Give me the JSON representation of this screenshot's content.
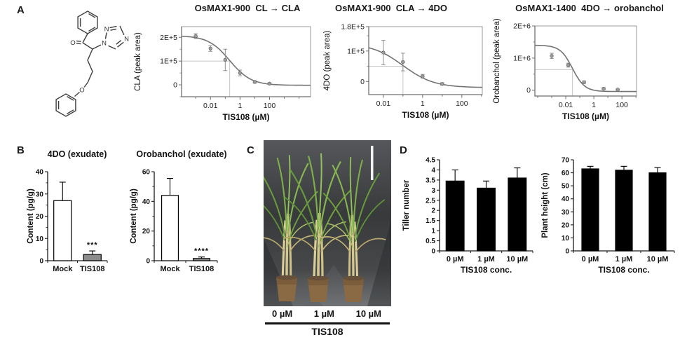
{
  "panels": {
    "a": {
      "label": "A"
    },
    "b": {
      "label": "B"
    },
    "c": {
      "label": "C",
      "concentrations": [
        "0 µM",
        "1 µM",
        "10 µM"
      ],
      "treatment": "TIS108"
    },
    "d": {
      "label": "D"
    }
  },
  "molecule": {
    "atoms": {
      "o_carbonyl": "O",
      "n1": "N",
      "n2": "N",
      "n4": "N",
      "o_ether": "O"
    }
  },
  "colors": {
    "curve_gray": "#737373",
    "marker_gray": "#c6c6c6",
    "mock_bar": "#ffffff",
    "tis108_bar": "#8c8c8c",
    "black_bar": "#000000",
    "photo_background": "#3a3c3e"
  },
  "chart_data": [
    {
      "id": "dose-cl-cla",
      "type": "line",
      "panel": "A",
      "title": "OsMAX1-900  CL → CLA",
      "xlabel": "TIS108 (µM)",
      "ylabel": "CLA (peak area)",
      "xscale": "log",
      "xlim": [
        0.00011,
        60000
      ],
      "ylim": [
        -50000,
        245000
      ],
      "x_ticks": [
        {
          "v": 0.01,
          "label": "0.01"
        },
        {
          "v": 1,
          "label": "1"
        },
        {
          "v": 100,
          "label": "100"
        }
      ],
      "y_ticks": [
        {
          "v": 0,
          "label": "0"
        },
        {
          "v": 100000,
          "label": "1E+5"
        },
        {
          "v": 200000,
          "label": "2E+5"
        }
      ],
      "y_minor": 50000,
      "points": {
        "x": [
          0.001,
          0.01,
          0.1,
          1,
          10,
          100
        ],
        "y": [
          205000,
          153000,
          105000,
          50000,
          12000,
          5000
        ],
        "err": [
          10000,
          12000,
          45000,
          12000,
          5000,
          4000
        ]
      },
      "curve": {
        "top": 207000,
        "bottom": -2000,
        "ic50": 0.2,
        "hill": 0.6
      },
      "ic50_marker": {
        "x": 0.2,
        "y": 100000
      }
    },
    {
      "id": "dose-cla-4do",
      "type": "line",
      "panel": "A",
      "title": "OsMAX1-900  CLA → 4DO",
      "xlabel": "TIS108 (µM)",
      "ylabel": "4DO (peak area)",
      "xscale": "log",
      "xlim": [
        0.0018,
        1100
      ],
      "ylim": [
        -43000,
        180000
      ],
      "x_ticks": [
        {
          "v": 0.01,
          "label": "0.01"
        },
        {
          "v": 1,
          "label": "1"
        },
        {
          "v": 100,
          "label": "100"
        }
      ],
      "y_ticks": [
        {
          "v": 0,
          "label": "0"
        },
        {
          "v": 100000,
          "label": "1E+5"
        },
        {
          "v": 180000,
          "label": "1.8E+5"
        }
      ],
      "y_minor": 50000,
      "points": {
        "x": [
          0.01,
          0.1,
          1,
          10
        ],
        "y": [
          95000,
          64000,
          17000,
          -8000
        ],
        "err": [
          40000,
          29000,
          6000,
          4000
        ]
      },
      "curve": {
        "top": 125000,
        "bottom": -20000,
        "ic50": 0.1,
        "hill": 0.55
      },
      "ic50_marker": {
        "x": 0.1,
        "y": 50000
      }
    },
    {
      "id": "dose-4do-oro",
      "type": "line",
      "panel": "A",
      "title": "OsMAX1-1400  4DO → orobanchol",
      "xlabel": "TIS108 (µM)",
      "ylabel": "Orobanchol (peak area)",
      "xscale": "log",
      "xlim": [
        6.3e-05,
        1100
      ],
      "ylim": [
        -180000,
        2000000
      ],
      "x_ticks": [
        {
          "v": 0.01,
          "label": "0.01"
        },
        {
          "v": 1,
          "label": "1"
        },
        {
          "v": 100,
          "label": "100"
        }
      ],
      "y_ticks": [
        {
          "v": 0,
          "label": "0"
        },
        {
          "v": 1000000,
          "label": "1E+6"
        },
        {
          "v": 2000000,
          "label": "2E+6"
        }
      ],
      "y_minor": 500000,
      "points": {
        "x": [
          0.001,
          0.015,
          0.2,
          5,
          50
        ],
        "y": [
          1070000,
          780000,
          250000,
          50000,
          20000
        ],
        "err": [
          80000,
          60000,
          40000,
          25000,
          15000
        ]
      },
      "curve": {
        "top": 1400000,
        "bottom": -40000,
        "ic50": 0.03,
        "hill": 1.0
      },
      "ic50_marker": {
        "x": 0.03,
        "y": 640000
      }
    },
    {
      "id": "bar-4do",
      "type": "bar",
      "panel": "B",
      "title": "4DO (exudate)",
      "ylabel": "Content (pg/g)",
      "xlabel": "",
      "ylim": [
        0,
        40
      ],
      "y_tick_step": 10,
      "y_minor_step": 5,
      "categories": [
        "Mock",
        "TIS108"
      ],
      "values": [
        27,
        2.8
      ],
      "errors": [
        8.3,
        1.6
      ],
      "sig": [
        "",
        "***"
      ],
      "bar_colors": [
        "#ffffff",
        "#8c8c8c"
      ]
    },
    {
      "id": "bar-oro",
      "type": "bar",
      "panel": "B",
      "title": "Orobanchol (exudate)",
      "ylabel": "Content (pg/g)",
      "xlabel": "",
      "ylim": [
        0,
        60
      ],
      "y_tick_step": 20,
      "y_minor_step": 10,
      "categories": [
        "Mock",
        "TIS108"
      ],
      "values": [
        44,
        1.5
      ],
      "errors": [
        11.5,
        1
      ],
      "sig": [
        "",
        "****"
      ],
      "bar_colors": [
        "#ffffff",
        "#8c8c8c"
      ]
    },
    {
      "id": "bar-tiller",
      "type": "bar",
      "panel": "D",
      "title": "",
      "ylabel": "Tiller number",
      "xlabel": "TIS108 conc.",
      "ylim": [
        0,
        4.5
      ],
      "y_tick_step": 0.5,
      "categories": [
        "0 µM",
        "1 µM",
        "10 µM"
      ],
      "values": [
        3.45,
        3.1,
        3.6
      ],
      "errors": [
        0.55,
        0.35,
        0.5
      ],
      "sig": [
        "",
        "",
        ""
      ],
      "bar_colors": [
        "#000000",
        "#000000",
        "#000000"
      ]
    },
    {
      "id": "bar-height",
      "type": "bar",
      "panel": "D",
      "title": "",
      "ylabel": "Plant height (cm)",
      "xlabel": "TIS108 conc.",
      "ylim": [
        0,
        70
      ],
      "y_tick_step": 10,
      "categories": [
        "0 µM",
        "1 µM",
        "10 µM"
      ],
      "values": [
        63,
        62,
        60
      ],
      "errors": [
        2,
        3,
        4
      ],
      "sig": [
        "",
        "",
        ""
      ],
      "bar_colors": [
        "#000000",
        "#000000",
        "#000000"
      ]
    }
  ]
}
